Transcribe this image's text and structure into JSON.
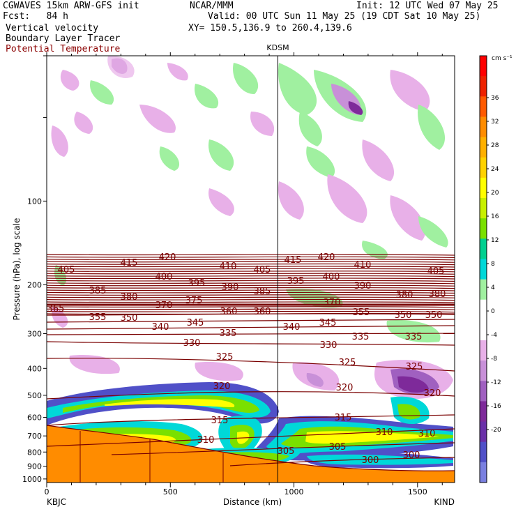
{
  "header": {
    "model": "CGWAVES 15km ARW-GFS init",
    "fcst": "Fcst:   84 h",
    "center": "NCAR/MMM",
    "init": "Init: 12 UTC Wed 07 May 25",
    "valid": "Valid: 00 UTC Sun 11 May 25 (19 CDT Sat 10 May 25)",
    "xy": "XY= 150.5,136.9 to 260.4,139.6",
    "fields": [
      "Vertical velocity",
      "Boundary Layer Tracer",
      "Potential Temperature"
    ]
  },
  "colors": {
    "theta_line": "#7a0000",
    "terrain": "#ff8c00",
    "frame": "#000000"
  },
  "chart_data": {
    "type": "cross-section",
    "station_marker": "KDSM",
    "station_marker_km": 935,
    "left_endpoint": "KBJC",
    "right_endpoint": "KIND",
    "xlabel": "Distance (km)",
    "ylabel": "Pressure (hPa), log scale",
    "xlim": [
      0,
      1650
    ],
    "x_ticks": [
      0,
      500,
      1000,
      1500
    ],
    "ylim": [
      1030,
      30
    ],
    "y_scale": "log",
    "y_ticks": [
      100,
      200,
      300,
      400,
      500,
      600,
      700,
      800,
      900,
      1000
    ],
    "colorbar": {
      "units": "cm s⁻¹",
      "labels": [
        "36",
        "32",
        "28",
        "24",
        "20",
        "16",
        "12",
        "8",
        "4",
        "0",
        "-4",
        "-8",
        "-12",
        "-16",
        "-20"
      ],
      "colors": [
        "#ff0000",
        "#ee2200",
        "#ff5a00",
        "#ff8c00",
        "#ffb000",
        "#ffd200",
        "#ffff00",
        "#c8f000",
        "#7ae000",
        "#00d090",
        "#00d8d8",
        "#a0f0a0",
        "#ffffff",
        "#ffffff",
        "#e8b0e8",
        "#c890d8",
        "#a060c0",
        "#7e2a9a",
        "#6a30a8",
        "#5050c8",
        "#7a80e0"
      ]
    },
    "theta_labels": [
      "420",
      "415",
      "410",
      "405",
      "400",
      "395",
      "390",
      "385",
      "380",
      "375",
      "370",
      "365",
      "360",
      "355",
      "350",
      "345",
      "340",
      "335",
      "330",
      "325",
      "320",
      "315",
      "310",
      "305",
      "300"
    ]
  }
}
